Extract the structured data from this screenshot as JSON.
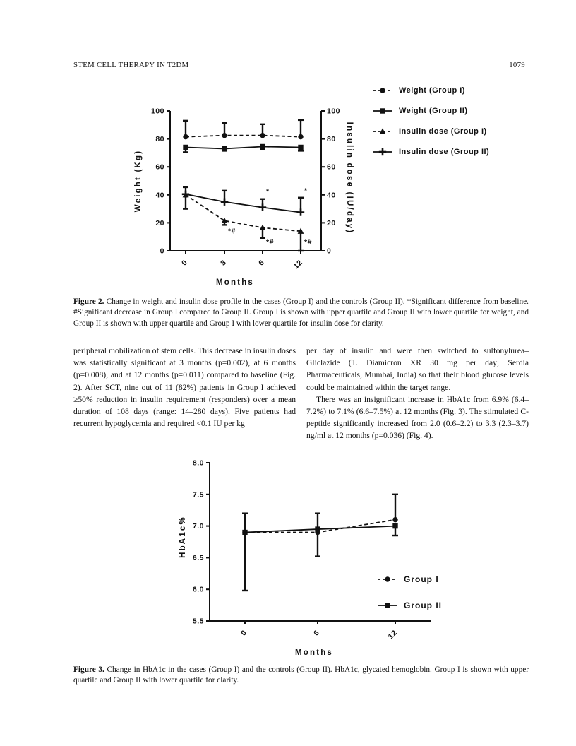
{
  "page": {
    "running_head": "STEM CELL THERAPY IN T2DM",
    "page_number": "1079"
  },
  "body": {
    "left_column": "peripheral mobilization of stem cells. This decrease in insulin doses was statistically significant at 3 months (p=0.002), at 6 months (p=0.008), and at 12 months (p=0.011) compared to baseline (Fig. 2). After SCT, nine out of 11 (82%) patients in Group I achieved ≥50% reduction in insulin requirement (responders) over a mean duration of 108 days (range: 14–280 days). Five patients had recurrent hypoglycemia and required <0.1 IU per kg",
    "right_column_para1": "per day of insulin and were then switched to sulfonylurea–Gliclazide (T. Diamicron XR 30 mg per day; Serdia Pharmaceuticals, Mumbai, India) so that their blood glucose levels could be maintained within the target range.",
    "right_column_para2": "There was an insignificant increase in HbA1c from 6.9% (6.4–7.2%) to 7.1% (6.6–7.5%) at 12 months (Fig. 3). The stimulated C-peptide significantly increased from 2.0 (0.6–2.2) to 3.3 (2.3–3.7) ng/ml at 12 months (p=0.036) (Fig. 4)."
  },
  "figure2": {
    "caption_label": "Figure 2.",
    "caption_text": "Change in weight and insulin dose profile in the cases (Group I) and the controls (Group II). *Significant difference from baseline. #Significant decrease in Group I compared to Group II. Group I is shown with upper quartile and Group II with lower quartile for weight, and Group II is shown with upper quartile and Group I with lower quartile for insulin dose for clarity."
  },
  "figure3": {
    "caption_label": "Figure 3.",
    "caption_text": "Change in HbA1c in the cases (Group I) and the controls (Group II). HbA1c, glycated hemoglobin. Group I is shown with upper quartile and Group II with lower quartile for clarity."
  },
  "chart_data": [
    {
      "id": "figure2",
      "type": "line",
      "categories": [
        "0",
        "3",
        "6",
        "12"
      ],
      "xlabel": "Months",
      "ylabel_left": "Weight (Kg)",
      "ylabel_right": "Insulin dose (IU/day)",
      "ylim": [
        0,
        100
      ],
      "yticks": [
        0,
        20,
        40,
        60,
        80,
        100
      ],
      "ytick_labels": [
        "0",
        "20",
        "40",
        "60",
        "80",
        "100"
      ],
      "grid": false,
      "legend_position": "top-right-outside",
      "series": [
        {
          "name": "Weight (Group I)",
          "axis": "left",
          "line": "dashed",
          "marker": "circle",
          "values": [
            81.5,
            82.5,
            82.5,
            81.5
          ],
          "err_high": [
            93,
            91.5,
            90.5,
            93.5
          ],
          "err_low": null
        },
        {
          "name": "Weight (Group II)",
          "axis": "left",
          "line": "solid",
          "marker": "square",
          "values": [
            74,
            73,
            74.5,
            74
          ],
          "err_high": null,
          "err_low": [
            70.5,
            71.5,
            72.5,
            71.5
          ]
        },
        {
          "name": "Insulin dose (Group I)",
          "axis": "right",
          "line": "dashed",
          "marker": "triangle",
          "values": [
            40,
            21.5,
            16.5,
            14
          ],
          "err_high": null,
          "err_low": [
            30,
            18.5,
            9,
            0
          ]
        },
        {
          "name": "Insulin dose (Group II)",
          "axis": "right",
          "line": "solid",
          "marker": "plus",
          "values": [
            40.5,
            35,
            31,
            27.5
          ],
          "err_high": [
            45.5,
            43,
            37,
            38
          ],
          "err_low": null
        }
      ],
      "annotations": [
        {
          "text": "*",
          "series": "Insulin dose (Group II)",
          "category_index": 2,
          "position": "above"
        },
        {
          "text": "*",
          "series": "Insulin dose (Group II)",
          "category_index": 3,
          "position": "above"
        },
        {
          "text": "*#",
          "series": "Insulin dose (Group I)",
          "category_index": 1,
          "position": "below"
        },
        {
          "text": "*#",
          "series": "Insulin dose (Group I)",
          "category_index": 2,
          "position": "below"
        },
        {
          "text": "*#",
          "series": "Insulin dose (Group I)",
          "category_index": 3,
          "position": "below"
        }
      ]
    },
    {
      "id": "figure3",
      "type": "line",
      "categories": [
        "0",
        "6",
        "12"
      ],
      "xlabel": "Months",
      "ylabel": "HbA1c%",
      "ylim": [
        5.5,
        8.0
      ],
      "yticks": [
        5.5,
        6.0,
        6.5,
        7.0,
        7.5,
        8.0
      ],
      "ytick_labels": [
        "5.5",
        "6.0",
        "6.5",
        "7.0",
        "7.5",
        "8.0"
      ],
      "grid": false,
      "legend_position": "inside-right",
      "series": [
        {
          "name": "Group I",
          "line": "dashed",
          "marker": "circle",
          "values": [
            6.9,
            6.9,
            7.1
          ],
          "err_high": [
            7.2,
            7.2,
            7.5
          ],
          "err_low": null
        },
        {
          "name": "Group II",
          "line": "solid",
          "marker": "square",
          "values": [
            6.9,
            6.95,
            7.0
          ],
          "err_high": null,
          "err_low": [
            5.98,
            6.52,
            6.85
          ]
        }
      ],
      "annotations": []
    }
  ]
}
